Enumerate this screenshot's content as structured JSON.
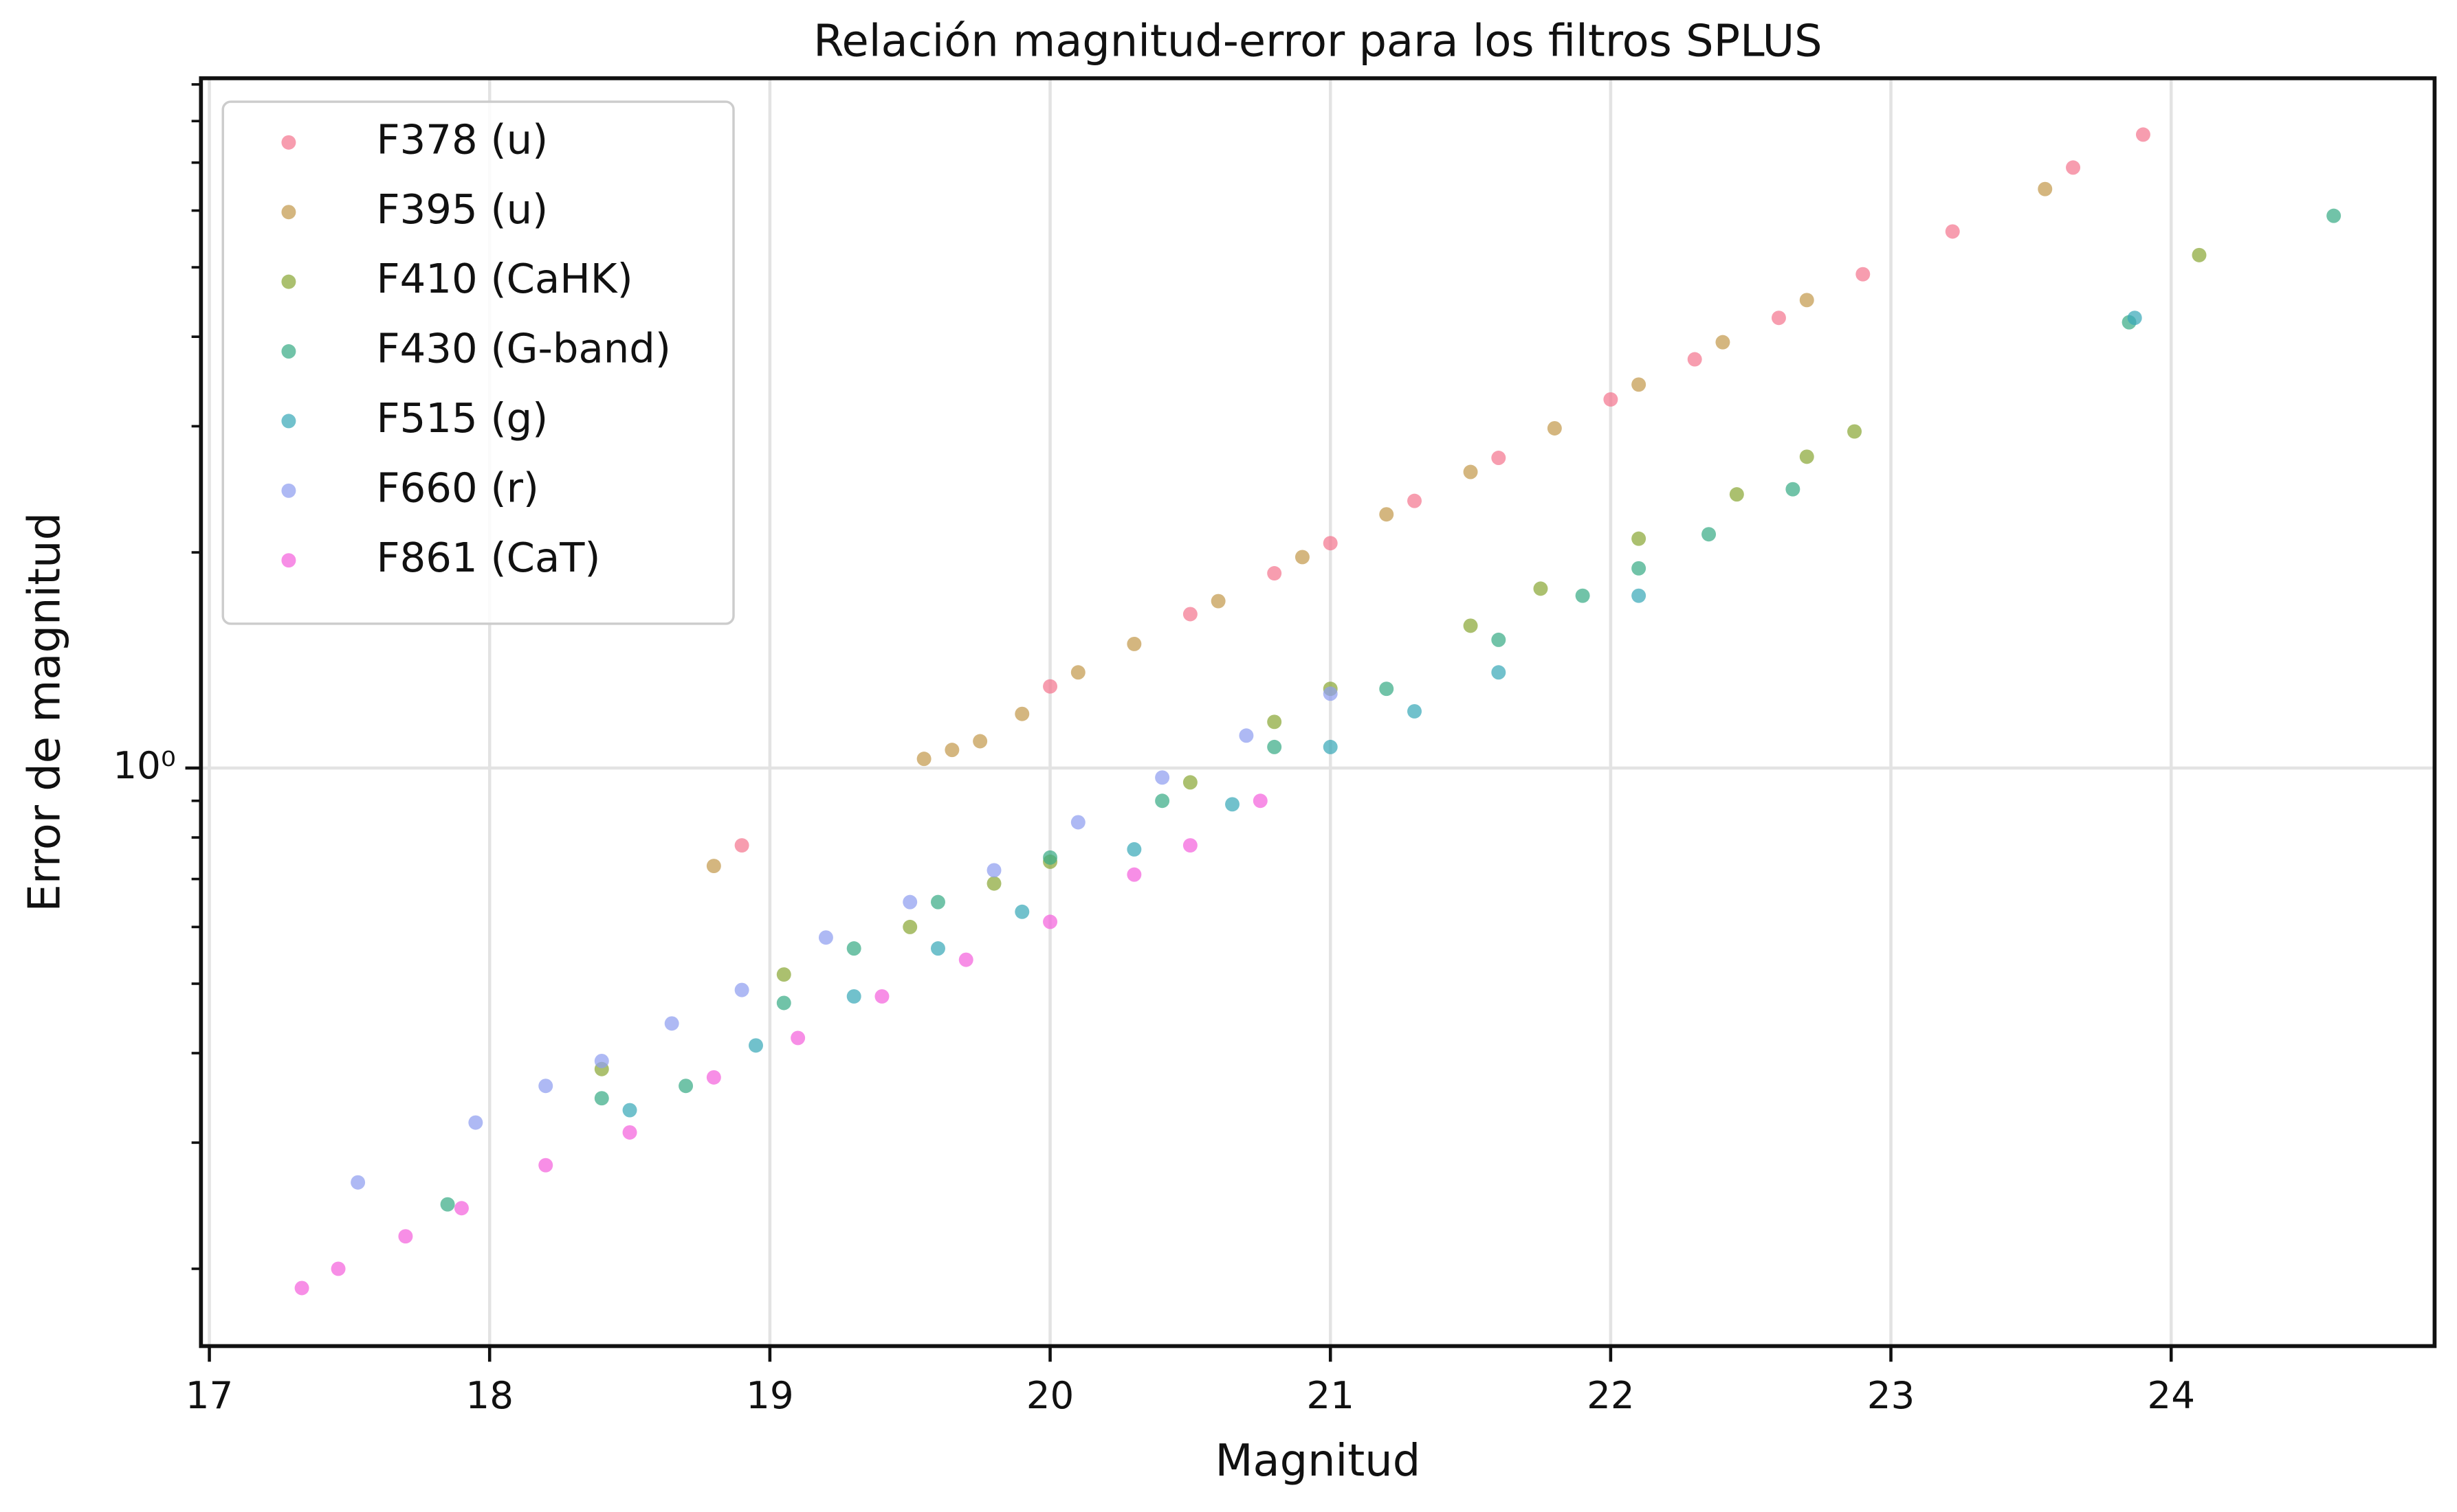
{
  "chart_data": {
    "type": "scatter",
    "title": "Relación magnitud-error para los filtros SPLUS",
    "x_label": "Magnitud",
    "y_label": "Error de magnitud",
    "log_y": true,
    "grid": true,
    "legend": "upper left",
    "xlim": [
      16.97,
      24.94
    ],
    "ylim": [
      0.156,
      9.18
    ],
    "xticks": [
      17,
      18,
      19,
      20,
      21,
      22,
      23,
      24
    ],
    "yticks": [
      {
        "value": 1,
        "label": "10⁰"
      }
    ],
    "yminorticks": [
      0.2,
      0.3,
      0.4,
      0.5,
      0.6,
      0.7,
      0.8,
      0.9,
      2,
      3,
      4,
      5,
      6,
      7,
      8,
      9
    ],
    "series": [
      {
        "name": "F378 (u)",
        "color": "#f47790",
        "x": [
          18.9,
          20.0,
          20.5,
          20.8,
          21.0,
          21.3,
          21.6,
          22.0,
          22.3,
          22.6,
          22.9,
          23.22,
          23.65,
          23.9
        ],
        "values": [
          0.78,
          1.3,
          1.64,
          1.87,
          2.06,
          2.36,
          2.71,
          3.27,
          3.72,
          4.25,
          4.89,
          5.61,
          6.89,
          7.66
        ]
      },
      {
        "name": "F395 (u)",
        "color": "#c49a4e",
        "x": [
          18.8,
          19.55,
          19.65,
          19.75,
          19.9,
          20.1,
          20.3,
          20.6,
          20.9,
          21.2,
          21.5,
          21.8,
          22.1,
          22.4,
          22.7,
          23.55
        ],
        "values": [
          0.73,
          1.03,
          1.06,
          1.09,
          1.19,
          1.36,
          1.49,
          1.71,
          1.97,
          2.26,
          2.59,
          2.98,
          3.43,
          3.93,
          4.5,
          6.43
        ]
      },
      {
        "name": "F410 (CaHK)",
        "color": "#8ba838",
        "x": [
          18.4,
          19.05,
          19.5,
          19.8,
          20.0,
          20.5,
          20.8,
          21.0,
          21.5,
          21.75,
          22.1,
          22.45,
          22.7,
          22.87,
          24.1
        ],
        "values": [
          0.38,
          0.515,
          0.6,
          0.69,
          0.74,
          0.955,
          1.16,
          1.29,
          1.58,
          1.78,
          2.09,
          2.41,
          2.72,
          2.95,
          5.2
        ]
      },
      {
        "name": "F430 (G-band)",
        "color": "#3aac86",
        "x": [
          17.85,
          18.4,
          18.7,
          19.05,
          19.3,
          19.6,
          20.0,
          20.4,
          20.8,
          21.2,
          21.6,
          21.9,
          22.1,
          22.35,
          22.65,
          23.85,
          24.58
        ],
        "values": [
          0.246,
          0.346,
          0.36,
          0.47,
          0.56,
          0.65,
          0.75,
          0.9,
          1.07,
          1.29,
          1.51,
          1.74,
          1.9,
          2.12,
          2.45,
          4.19,
          5.9
        ]
      },
      {
        "name": "F515 (g)",
        "color": "#3aa9b8",
        "x": [
          18.5,
          18.95,
          19.3,
          19.6,
          19.9,
          20.3,
          20.65,
          21.0,
          21.3,
          21.6,
          22.1,
          23.87
        ],
        "values": [
          0.333,
          0.41,
          0.48,
          0.56,
          0.63,
          0.77,
          0.89,
          1.07,
          1.2,
          1.36,
          1.74,
          4.25
        ]
      },
      {
        "name": "F660 (r)",
        "color": "#8f9ef0",
        "x": [
          17.53,
          17.95,
          18.2,
          18.4,
          18.65,
          18.9,
          19.2,
          19.5,
          19.8,
          20.1,
          20.4,
          20.7,
          21.0
        ],
        "values": [
          0.264,
          0.32,
          0.36,
          0.39,
          0.44,
          0.49,
          0.58,
          0.65,
          0.72,
          0.84,
          0.97,
          1.11,
          1.27
        ]
      },
      {
        "name": "F861 (CaT)",
        "color": "#f463dc",
        "x": [
          17.33,
          17.46,
          17.7,
          17.9,
          18.2,
          18.5,
          18.8,
          19.1,
          19.4,
          19.7,
          20.0,
          20.3,
          20.5,
          20.75
        ],
        "values": [
          0.188,
          0.2,
          0.222,
          0.243,
          0.279,
          0.31,
          0.37,
          0.42,
          0.48,
          0.54,
          0.61,
          0.71,
          0.78,
          0.9
        ]
      }
    ]
  }
}
